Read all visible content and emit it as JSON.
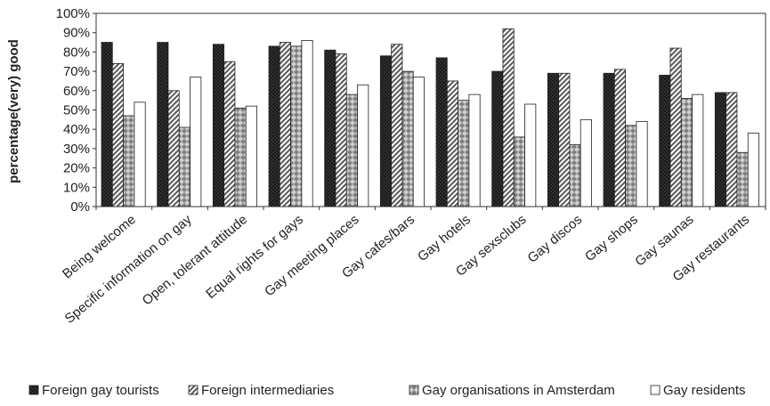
{
  "chart_data": {
    "type": "bar",
    "ylabel": "percentage(very) good",
    "ylim": [
      0,
      100
    ],
    "yticks": [
      "0%",
      "10%",
      "20%",
      "30%",
      "40%",
      "50%",
      "60%",
      "70%",
      "80%",
      "90%",
      "100%"
    ],
    "categories": [
      "Being welcome",
      "Specific information on gay",
      "Open, tolerant attitude",
      "Equal rights for gays",
      "Gay meeting places",
      "Gay cafes/bars",
      "Gay hotels",
      "Gay sexsclubs",
      "Gay discos",
      "Gay shops",
      "Gay saunas",
      "Gay restaurants"
    ],
    "series": [
      {
        "name": "Foreign gay tourists",
        "pattern": "dots-dark",
        "color": "#1a1a1a",
        "values": [
          85,
          85,
          84,
          83,
          81,
          78,
          77,
          70,
          69,
          69,
          68,
          59
        ]
      },
      {
        "name": "Foreign intermediaries",
        "pattern": "diagonal-hatch",
        "color": "#8c8c8c",
        "values": [
          74,
          60,
          75,
          85,
          79,
          84,
          65,
          92,
          69,
          71,
          82,
          59
        ]
      },
      {
        "name": "Gay organisations in Amsterdam",
        "pattern": "diamonds-grey",
        "color": "#a0a0a0",
        "values": [
          47,
          41,
          51,
          83,
          58,
          70,
          55,
          36,
          32,
          42,
          56,
          28
        ]
      },
      {
        "name": "Gay residents",
        "pattern": "white",
        "color": "#ffffff",
        "values": [
          54,
          67,
          52,
          86,
          63,
          67,
          58,
          53,
          45,
          44,
          58,
          38
        ]
      }
    ],
    "grid": false,
    "legend_position": "bottom"
  }
}
